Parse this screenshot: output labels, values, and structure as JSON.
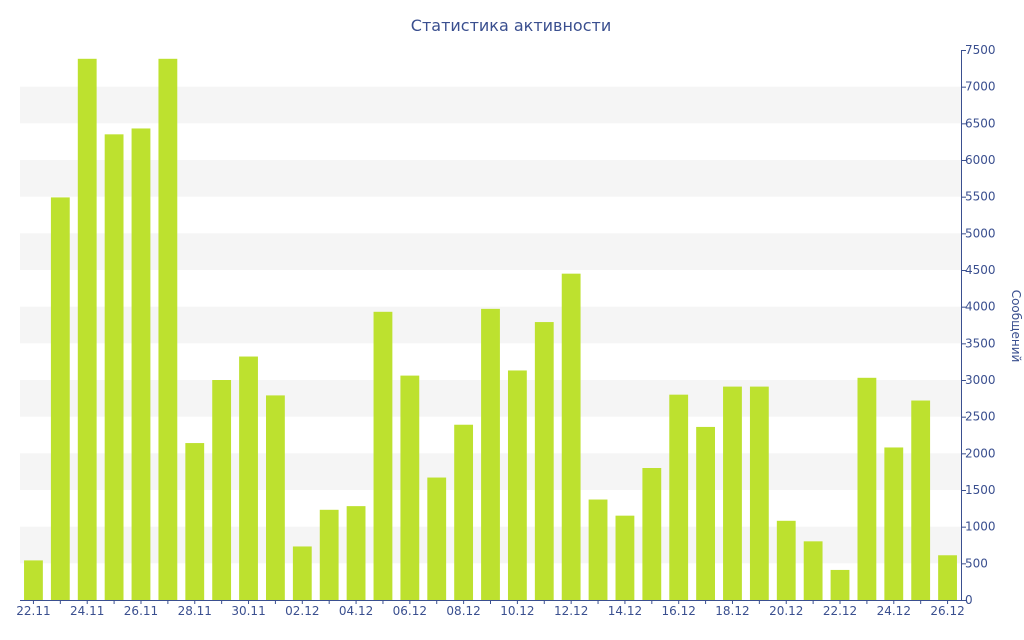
{
  "chart_data": {
    "type": "bar",
    "title": "Статистика активности",
    "xlabel": "",
    "ylabel": "Сообщений",
    "ylim": [
      0,
      7500
    ],
    "y_ticks": [
      0,
      500,
      1000,
      1500,
      2000,
      2500,
      3000,
      3500,
      4000,
      4500,
      5000,
      5500,
      6000,
      6500,
      7000,
      7500
    ],
    "y_axis_side": "right",
    "grid": "horizontal alternating bands",
    "legend": "none",
    "bar_color": "#bde12f",
    "band_color": "#f5f5f5",
    "text_color": "#3a4f8f",
    "categories": [
      "22.11",
      "23.11",
      "24.11",
      "25.11",
      "26.11",
      "27.11",
      "28.11",
      "29.11",
      "30.11",
      "01.12",
      "02.12",
      "03.12",
      "04.12",
      "05.12",
      "06.12",
      "07.12",
      "08.12",
      "09.12",
      "10.12",
      "11.12",
      "12.12",
      "13.12",
      "14.12",
      "15.12",
      "16.12",
      "17.12",
      "18.12",
      "19.12",
      "20.12",
      "21.12",
      "22.12",
      "23.12",
      "24.12",
      "25.12",
      "26.12"
    ],
    "x_tick_labels": [
      "22.11",
      "24.11",
      "26.11",
      "28.11",
      "30.11",
      "02.12",
      "04.12",
      "06.12",
      "08.12",
      "10.12",
      "12.12",
      "14.12",
      "16.12",
      "18.12",
      "20.12",
      "22.12",
      "24.12",
      "26.12"
    ],
    "values": [
      540,
      5490,
      7380,
      6350,
      6430,
      7380,
      2140,
      3000,
      3320,
      2790,
      730,
      1230,
      1280,
      3930,
      3060,
      1670,
      2390,
      3970,
      3130,
      3790,
      4450,
      1370,
      1150,
      1800,
      2800,
      2360,
      2910,
      2910,
      1080,
      800,
      410,
      3030,
      2080,
      2720,
      610
    ]
  }
}
